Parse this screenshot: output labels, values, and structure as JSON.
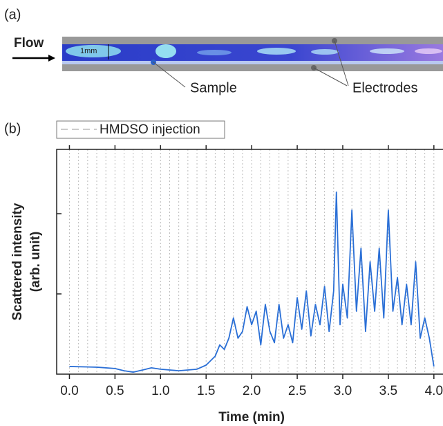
{
  "panel_a": {
    "label": "(a)",
    "flow": "Flow",
    "scale": "1mm",
    "sample": "Sample",
    "electrodes": "Electrodes"
  },
  "chart_data": {
    "type": "line",
    "panel_label": "(b)",
    "xlabel": "Time (min)",
    "ylabel": [
      "Scattered intensity",
      "(arb. unit)"
    ],
    "xlim": [
      -0.14,
      4.1
    ],
    "ylim": [
      0,
      100
    ],
    "xticks": [
      {
        "value": 0,
        "label": "0.0"
      },
      {
        "value": 0.5,
        "label": "0.5"
      },
      {
        "value": 1,
        "label": "1.0"
      },
      {
        "value": 1.5,
        "label": "1.5"
      },
      {
        "value": 2,
        "label": "2.0"
      },
      {
        "value": 2.5,
        "label": "2.5"
      },
      {
        "value": 3,
        "label": "3.0"
      },
      {
        "value": 3.5,
        "label": "3.5"
      },
      {
        "value": 4,
        "label": "4.0"
      }
    ],
    "injections": {
      "name": "HMDSO injection",
      "color": "#bbbbbb",
      "x": [
        0,
        0.1,
        0.2,
        0.3,
        0.4,
        0.5,
        0.6,
        0.7,
        0.8,
        0.9,
        1,
        1.1,
        1.2,
        1.3,
        1.4,
        1.5,
        1.6,
        1.7,
        1.8,
        1.9,
        2,
        2.1,
        2.2,
        2.3,
        2.4,
        2.5,
        2.6,
        2.7,
        2.8,
        2.9,
        3,
        3.1,
        3.2,
        3.3,
        3.4,
        3.5,
        3.6,
        3.7,
        3.8,
        3.9,
        4
      ]
    },
    "legend": "top-left",
    "series": [
      {
        "color": "#2a6fd6",
        "x": [
          0,
          0.3,
          0.5,
          0.6,
          0.7,
          0.8,
          0.9,
          1,
          1.2,
          1.4,
          1.5,
          1.6,
          1.65,
          1.7,
          1.75,
          1.8,
          1.85,
          1.9,
          1.95,
          2,
          2.05,
          2.1,
          2.15,
          2.2,
          2.25,
          2.3,
          2.35,
          2.4,
          2.45,
          2.5,
          2.55,
          2.6,
          2.65,
          2.7,
          2.75,
          2.8,
          2.85,
          2.9,
          2.93,
          2.97,
          3,
          3.05,
          3.1,
          3.15,
          3.2,
          3.25,
          3.3,
          3.35,
          3.4,
          3.45,
          3.5,
          3.55,
          3.6,
          3.65,
          3.7,
          3.75,
          3.8,
          3.85,
          3.9,
          3.95,
          4
        ],
        "values": [
          3.4,
          3.1,
          2.5,
          1.5,
          0.9,
          1.8,
          2.8,
          2.2,
          1.5,
          2.2,
          4,
          8,
          13,
          11,
          16,
          25,
          16,
          19,
          30,
          22,
          28,
          13,
          31,
          19,
          14,
          31,
          16,
          22,
          14,
          34,
          20,
          37,
          17,
          31,
          22,
          39,
          19,
          37,
          81,
          22,
          40,
          25,
          73,
          28,
          56,
          19,
          50,
          28,
          56,
          25,
          73,
          28,
          43,
          22,
          40,
          22,
          50,
          16,
          25,
          16,
          3.4
        ]
      }
    ]
  }
}
